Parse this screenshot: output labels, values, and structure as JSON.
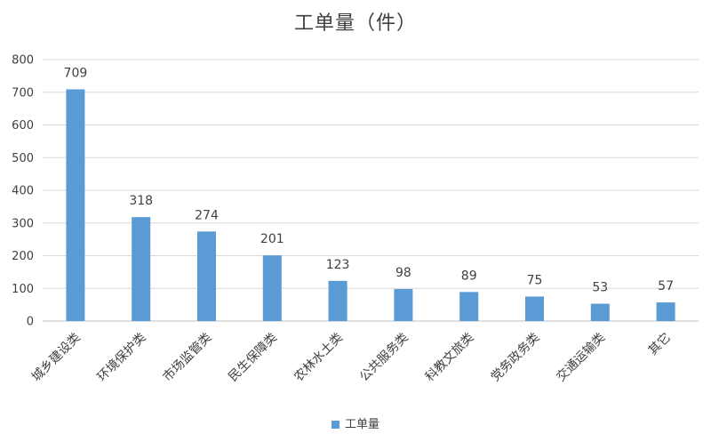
{
  "chart_data": {
    "type": "bar",
    "title": "工单量（件）",
    "categories": [
      "城乡建设类",
      "环境保护类",
      "市场监管类",
      "民生保障类",
      "农林水土类",
      "公共服务类",
      "科教文旅类",
      "党务政务类",
      "交通运输类",
      "其它"
    ],
    "series": [
      {
        "name": "工单量",
        "values": [
          709,
          318,
          274,
          201,
          123,
          98,
          89,
          75,
          53,
          57
        ]
      }
    ],
    "ylim": [
      0,
      800
    ],
    "yticks": [
      0,
      100,
      200,
      300,
      400,
      500,
      600,
      700,
      800
    ],
    "grid": true,
    "legend_position": "bottom",
    "bar_color": "#5b9bd5",
    "data_labels": true
  }
}
